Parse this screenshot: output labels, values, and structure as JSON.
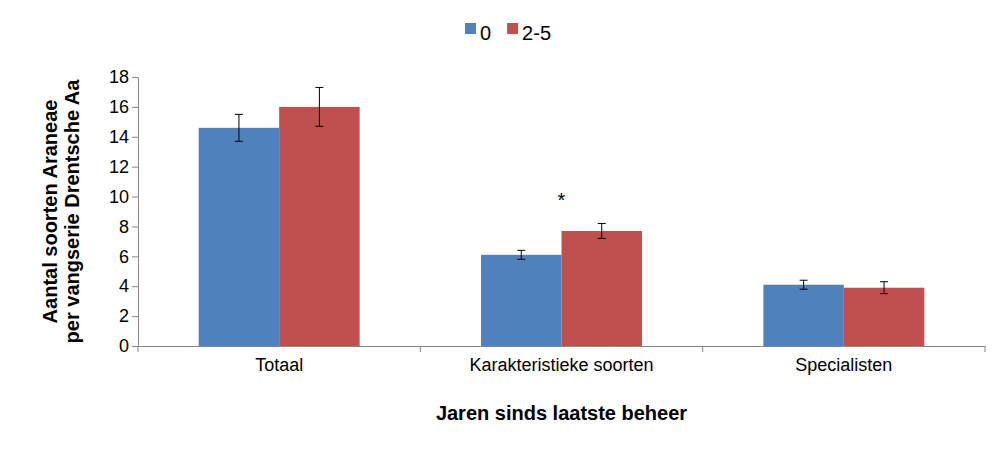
{
  "chart_data": {
    "type": "bar",
    "xlabel": "Jaren sinds laatste beheer",
    "ylabel": "Aantal soorten Araneae per vangserie Drentsche Aa",
    "categories": [
      "Totaal",
      "Karakteristieke soorten",
      "Specialisten"
    ],
    "series": [
      {
        "name": "0",
        "color": "#4f81bd",
        "values": [
          14.6,
          6.1,
          4.1
        ],
        "errors": [
          0.9,
          0.3,
          0.3
        ]
      },
      {
        "name": "2-5",
        "color": "#c0504d",
        "values": [
          16.0,
          7.7,
          3.9
        ],
        "errors": [
          1.3,
          0.5,
          0.4
        ]
      }
    ],
    "annotations": [
      {
        "text": "*",
        "category": "Karakteristieke soorten"
      }
    ],
    "ylim": [
      0,
      18
    ],
    "yticks": [
      0,
      2,
      4,
      6,
      8,
      10,
      12,
      14,
      16,
      18
    ],
    "grid": false,
    "legend": "top"
  }
}
